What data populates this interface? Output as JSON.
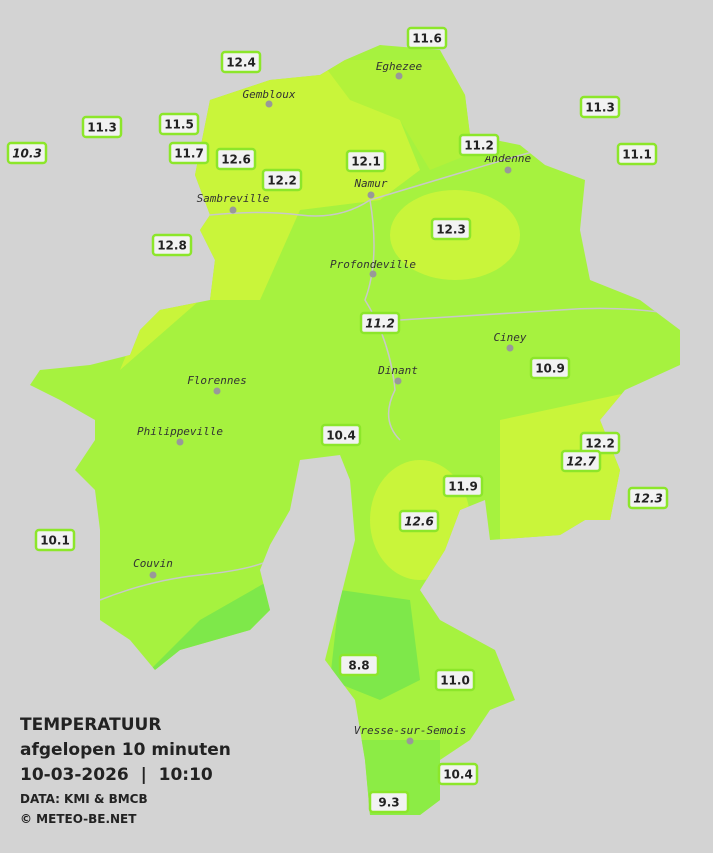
{
  "title": {
    "line1": "TEMPERATUUR",
    "line2": "afgelopen 10 minuten",
    "line3": "10-03-2026  |  10:10",
    "source": "DATA: KMI & BMCB",
    "credit": "© METEO-BE.NET"
  },
  "cities": [
    "Eghezee",
    "Gembloux",
    "Andenne",
    "Namur",
    "Sambreville",
    "Profondeville",
    "Ciney",
    "Dinant",
    "Florennes",
    "Philippeville",
    "Couvin",
    "Vresse-sur-Semois"
  ],
  "stations": [
    "11.6",
    "12.4",
    "11.3",
    "11.3",
    "11.5",
    "10.3",
    "11.7",
    "12.6",
    "12.1",
    "11.2",
    "11.1",
    "12.2",
    "12.3",
    "12.8",
    "11.2",
    "10.9",
    "10.4",
    "12.2",
    "12.7",
    "12.3",
    "11.9",
    "12.6",
    "10.1",
    "8.8",
    "11.0",
    "10.4",
    "9.3"
  ]
}
